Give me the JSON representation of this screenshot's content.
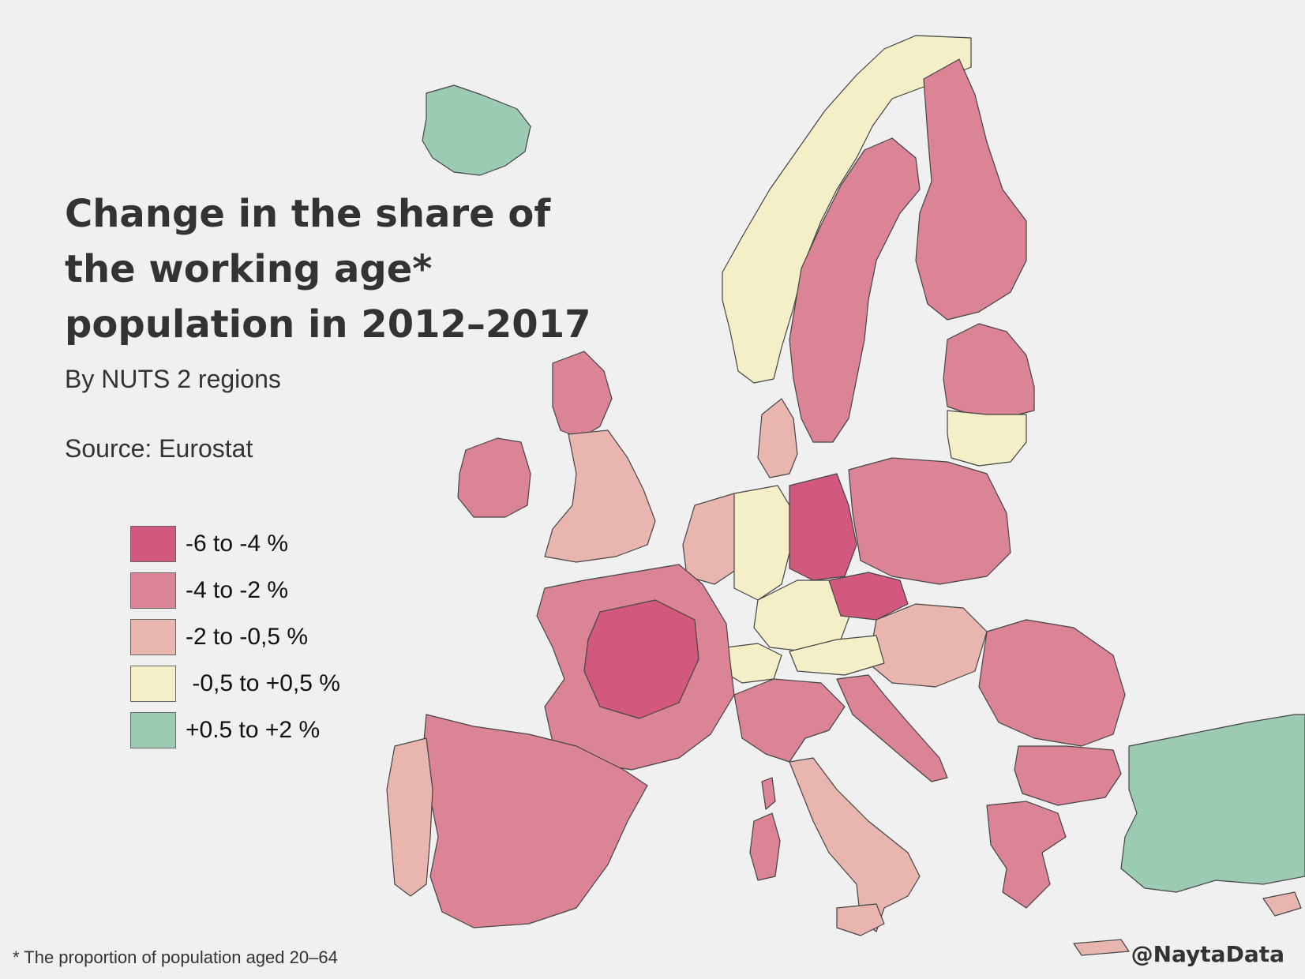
{
  "title": "Change in the share of the working age* population in 2012–2017",
  "subtitle": "By NUTS 2 regions",
  "source": "Source: Eurostat",
  "legend": [
    {
      "label": "-6 to -4 %",
      "color": "#d2587e"
    },
    {
      "label": "-4 to -2 %",
      "color": "#da8496"
    },
    {
      "label": "-2 to -0,5 %",
      "color": "#e8b6ae"
    },
    {
      "label": " -0,5 to +0,5 %",
      "color": "#f5efc8"
    },
    {
      "label": "+0.5 to +2 %",
      "color": "#9ccbb3"
    }
  ],
  "footnote": "* The proportion of population aged 20–64",
  "credit": "@NaytaData",
  "map_data": {
    "regions": [
      {
        "region": "Iceland",
        "class": 4
      },
      {
        "region": "Norway",
        "class": 3
      },
      {
        "region": "Sweden",
        "class": 1
      },
      {
        "region": "Finland",
        "class": 1
      },
      {
        "region": "Estonia / Latvia",
        "class": 1
      },
      {
        "region": "Lithuania",
        "class": 3
      },
      {
        "region": "Ireland",
        "class": 1
      },
      {
        "region": "Scotland",
        "class": 1
      },
      {
        "region": "England",
        "class": 2
      },
      {
        "region": "Denmark",
        "class": 2
      },
      {
        "region": "Benelux",
        "class": 2
      },
      {
        "region": "Western Germany",
        "class": 3
      },
      {
        "region": "Eastern Germany",
        "class": 0
      },
      {
        "region": "Bavaria",
        "class": 3
      },
      {
        "region": "Poland",
        "class": 1
      },
      {
        "region": "Czechia",
        "class": 0
      },
      {
        "region": "Slovakia / Hungary",
        "class": 2
      },
      {
        "region": "Austria",
        "class": 3
      },
      {
        "region": "Switzerland",
        "class": 3
      },
      {
        "region": "France",
        "class": 1
      },
      {
        "region": "Central France",
        "class": 0
      },
      {
        "region": "Spain",
        "class": 1
      },
      {
        "region": "Portugal",
        "class": 2
      },
      {
        "region": "Italy North",
        "class": 1
      },
      {
        "region": "Italy South",
        "class": 2
      },
      {
        "region": "Slovenia / Croatia",
        "class": 1
      },
      {
        "region": "Romania",
        "class": 1
      },
      {
        "region": "Bulgaria",
        "class": 1
      },
      {
        "region": "Greece",
        "class": 1
      },
      {
        "region": "Turkey",
        "class": 4
      },
      {
        "region": "Sardinia",
        "class": 1
      },
      {
        "region": "Corsica",
        "class": 1
      },
      {
        "region": "Sicily",
        "class": 2
      },
      {
        "region": "Cyprus",
        "class": 2
      },
      {
        "region": "Crete",
        "class": 2
      }
    ]
  }
}
